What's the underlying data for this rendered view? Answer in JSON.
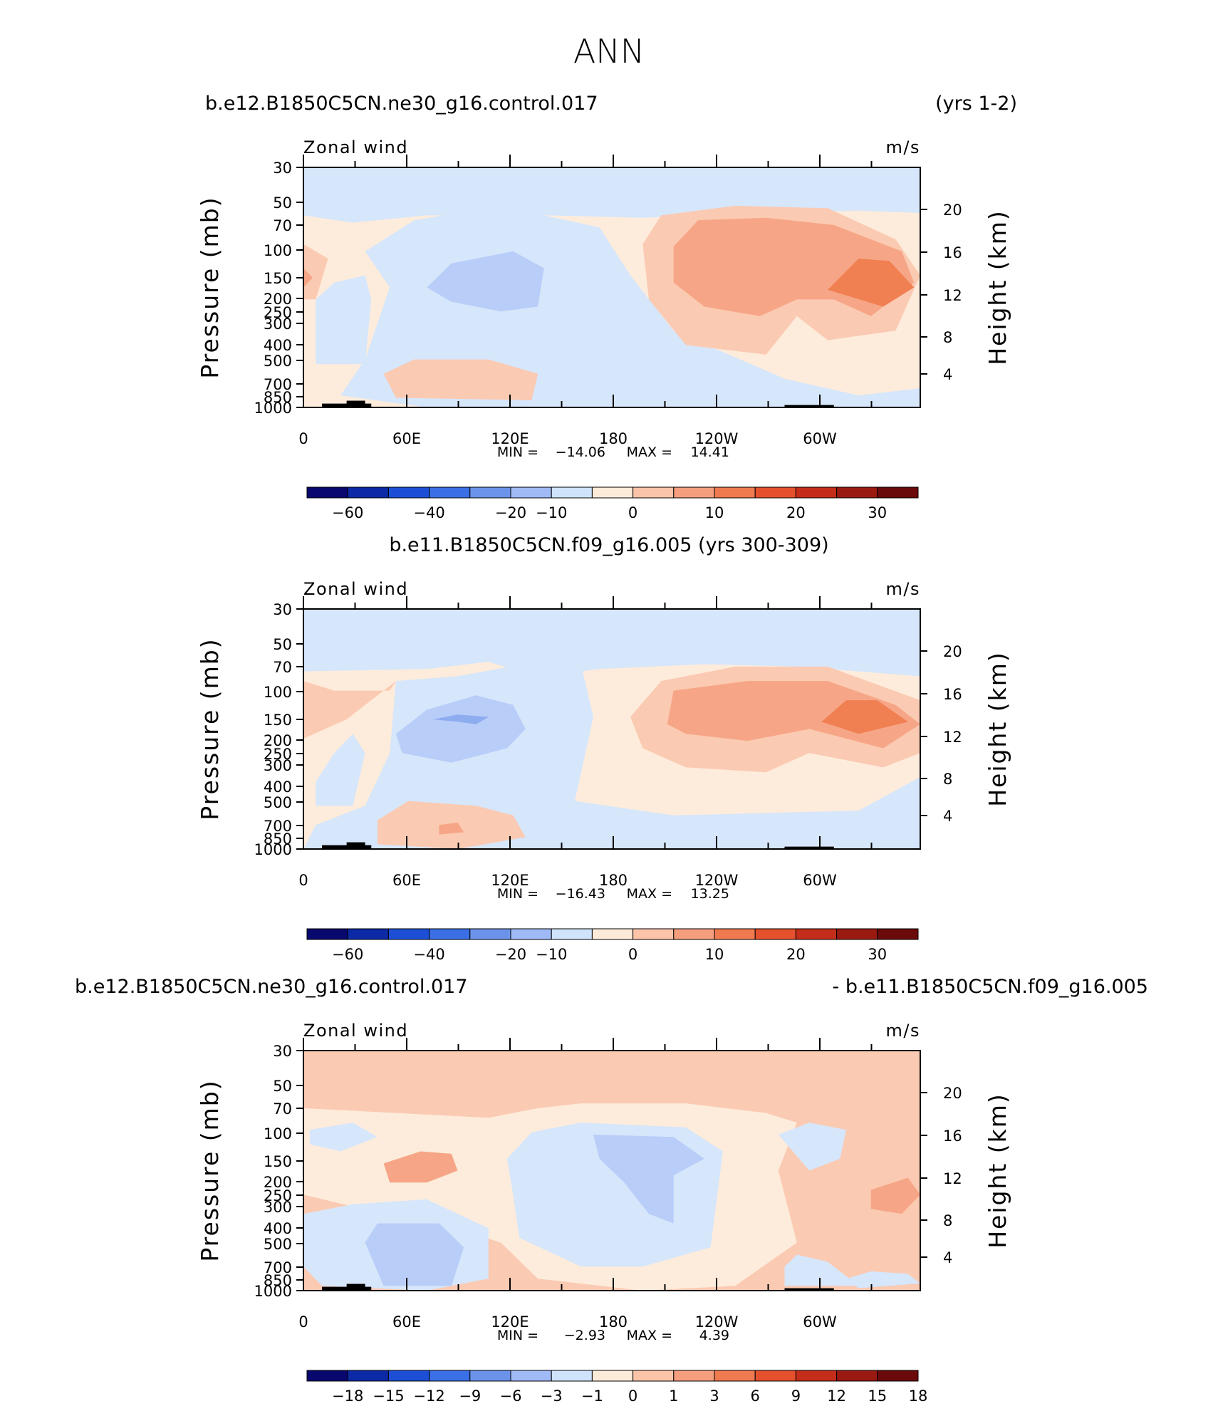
{
  "main_title": "ANN",
  "chart_data": [
    {
      "type": "heatmap",
      "title_left": "b.e12.B1850C5CN.ne30_g16.control.017",
      "title_right": "(yrs 1-2)",
      "title_center": "",
      "variable": "Zonal wind",
      "units": "m/s",
      "ylabel": "Pressure (mb)",
      "ylabel_right": "Height (km)",
      "x_ticks": [
        "0",
        "60E",
        "120E",
        "180",
        "120W",
        "60W"
      ],
      "y_ticks": [
        "30",
        "50",
        "70",
        "100",
        "150",
        "200",
        "250",
        "300",
        "400",
        "500",
        "700",
        "850",
        "1000"
      ],
      "y_ticks_right": [
        "20",
        "16",
        "12",
        "8",
        "4"
      ],
      "stats": {
        "min_label": "MIN =",
        "min": "−14.06",
        "max_label": "MAX =",
        "max": "14.41"
      },
      "colorbar_labels": [
        "−60",
        "−40",
        "−20",
        "−10",
        "0",
        "10",
        "20",
        "30"
      ]
    },
    {
      "type": "heatmap",
      "title_left": "",
      "title_right": "",
      "title_center": "b.e11.B1850C5CN.f09_g16.005 (yrs 300-309)",
      "variable": "Zonal wind",
      "units": "m/s",
      "ylabel": "Pressure (mb)",
      "ylabel_right": "Height (km)",
      "x_ticks": [
        "0",
        "60E",
        "120E",
        "180",
        "120W",
        "60W"
      ],
      "y_ticks": [
        "30",
        "50",
        "70",
        "100",
        "150",
        "200",
        "250",
        "300",
        "400",
        "500",
        "700",
        "850",
        "1000"
      ],
      "y_ticks_right": [
        "20",
        "16",
        "12",
        "8",
        "4"
      ],
      "stats": {
        "min_label": "MIN =",
        "min": "−16.43",
        "max_label": "MAX =",
        "max": "13.25"
      },
      "colorbar_labels": [
        "−60",
        "−40",
        "−20",
        "−10",
        "0",
        "10",
        "20",
        "30"
      ]
    },
    {
      "type": "heatmap",
      "title_left": "b.e12.B1850C5CN.ne30_g16.control.017",
      "title_right": "- b.e11.B1850C5CN.f09_g16.005",
      "title_center": "",
      "variable": "Zonal wind",
      "units": "m/s",
      "ylabel": "Pressure (mb)",
      "ylabel_right": "Height (km)",
      "x_ticks": [
        "0",
        "60E",
        "120E",
        "180",
        "120W",
        "60W"
      ],
      "y_ticks": [
        "30",
        "50",
        "70",
        "100",
        "150",
        "200",
        "250",
        "300",
        "400",
        "500",
        "700",
        "850",
        "1000"
      ],
      "y_ticks_right": [
        "20",
        "16",
        "12",
        "8",
        "4"
      ],
      "stats": {
        "min_label": "MIN =",
        "min": "−2.93",
        "max_label": "MAX =",
        "max": "4.39"
      },
      "colorbar_labels": [
        "−18",
        "−15",
        "−12",
        "−9",
        "−6",
        "−3",
        "−1",
        "0",
        "1",
        "3",
        "6",
        "9",
        "12",
        "15",
        "18"
      ]
    }
  ],
  "colors": {
    "colorbar": [
      "#08086e",
      "#0c2aa6",
      "#1c4fd6",
      "#3b6fe6",
      "#6b93ea",
      "#9fbaf5",
      "#cfe3fb",
      "#fdebd9",
      "#fbc4a8",
      "#f59e7e",
      "#ef7a50",
      "#e4512c",
      "#c42d1a",
      "#9a1a12",
      "#6b0a0a"
    ],
    "cold": "#d6e6fb",
    "cool": "#b8cdf8",
    "cooler": "#8eacf0",
    "neutral": "#fdecdc",
    "warm": "#fbcab2",
    "warmer": "#f6a686",
    "hot": "#f07f52",
    "orography": "#000000"
  }
}
